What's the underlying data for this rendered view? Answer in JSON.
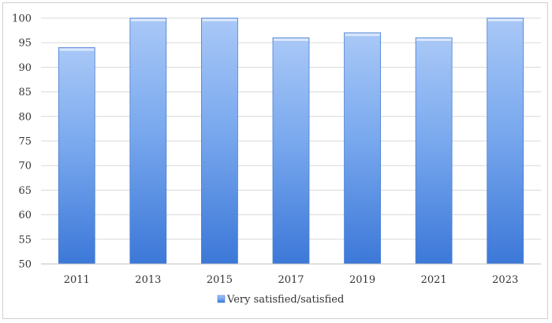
{
  "chart_data": {
    "type": "bar",
    "categories": [
      "2011",
      "2013",
      "2015",
      "2017",
      "2019",
      "2021",
      "2023"
    ],
    "series": [
      {
        "name": "Very satisfied/satisfied",
        "values": [
          94,
          100,
          100,
          96,
          97,
          96,
          100
        ]
      }
    ],
    "ylim": [
      50,
      100
    ],
    "yticks": [
      50,
      55,
      60,
      65,
      70,
      75,
      80,
      85,
      90,
      95,
      100
    ],
    "grid": true,
    "legend_position": "bottom",
    "colors": {
      "bar_top": "#a9c8f7",
      "bar_mid": "#7aa9ee",
      "bar_bottom": "#3c78d8",
      "bar_edge": "#4a7fd0",
      "grid": "#d9d9d9",
      "axis": "#bfbfbf"
    }
  }
}
